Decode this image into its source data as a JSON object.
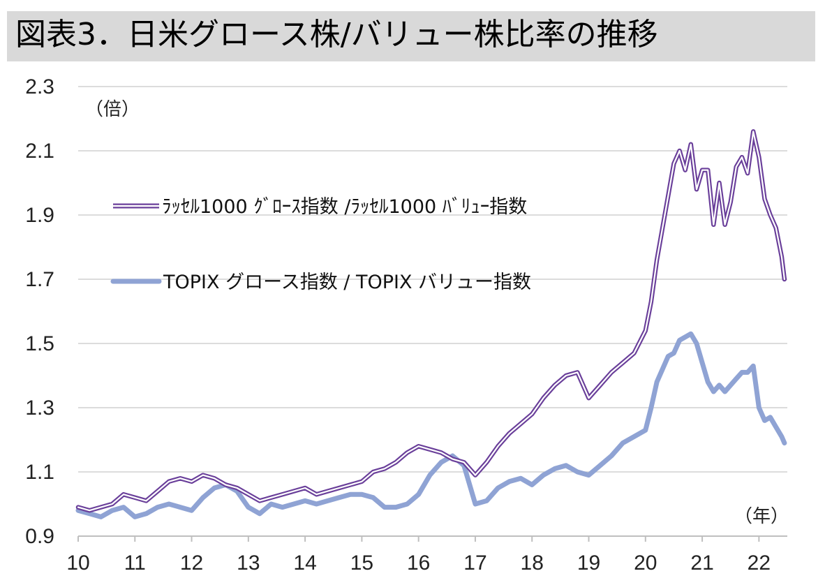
{
  "title": "図表3．日米グロース株/バリュー株比率の推移",
  "chart_data": {
    "type": "line",
    "title": "図表3．日米グロース株/バリュー株比率の推移",
    "ylabel": "（倍）",
    "xlabel": "（年）",
    "ylim": [
      0.9,
      2.3
    ],
    "xlim": [
      10,
      22.5
    ],
    "yticks": [
      0.9,
      1.1,
      1.3,
      1.5,
      1.7,
      1.9,
      2.1,
      2.3
    ],
    "ytick_labels": [
      "0.9",
      "1.1",
      "1.3",
      "1.5",
      "1.7",
      "1.9",
      "2.1",
      "2.3"
    ],
    "xticks": [
      10,
      11,
      12,
      13,
      14,
      15,
      16,
      17,
      18,
      19,
      20,
      21,
      22
    ],
    "xtick_labels": [
      "10",
      "11",
      "12",
      "13",
      "14",
      "15",
      "16",
      "17",
      "18",
      "19",
      "20",
      "21",
      "22"
    ],
    "grid": "horizontal",
    "legend_position": "upper-left",
    "series": [
      {
        "name": "ﾗｯｾﾙ1000 ｸﾞﾛｰｽ指数 /ﾗｯｾﾙ1000 ﾊﾞﾘｭｰ指数",
        "color": "#6a3f9a",
        "style": "double-line",
        "x": [
          10.0,
          10.2,
          10.4,
          10.6,
          10.8,
          11.0,
          11.2,
          11.4,
          11.6,
          11.8,
          12.0,
          12.2,
          12.4,
          12.6,
          12.8,
          13.0,
          13.2,
          13.4,
          13.6,
          13.8,
          14.0,
          14.2,
          14.4,
          14.6,
          14.8,
          15.0,
          15.2,
          15.4,
          15.6,
          15.8,
          16.0,
          16.2,
          16.4,
          16.6,
          16.8,
          17.0,
          17.2,
          17.4,
          17.6,
          17.8,
          18.0,
          18.2,
          18.4,
          18.6,
          18.8,
          19.0,
          19.2,
          19.4,
          19.6,
          19.8,
          20.0,
          20.1,
          20.2,
          20.3,
          20.4,
          20.5,
          20.6,
          20.7,
          20.8,
          20.9,
          21.0,
          21.1,
          21.2,
          21.3,
          21.4,
          21.5,
          21.6,
          21.7,
          21.8,
          21.9,
          22.0,
          22.1,
          22.2,
          22.3,
          22.4,
          22.45
        ],
        "values": [
          0.99,
          0.98,
          0.99,
          1.0,
          1.03,
          1.02,
          1.01,
          1.04,
          1.07,
          1.08,
          1.07,
          1.09,
          1.08,
          1.06,
          1.05,
          1.03,
          1.01,
          1.02,
          1.03,
          1.04,
          1.05,
          1.03,
          1.04,
          1.05,
          1.06,
          1.07,
          1.1,
          1.11,
          1.13,
          1.16,
          1.18,
          1.17,
          1.16,
          1.14,
          1.13,
          1.09,
          1.13,
          1.18,
          1.22,
          1.25,
          1.28,
          1.33,
          1.37,
          1.4,
          1.41,
          1.33,
          1.37,
          1.41,
          1.44,
          1.47,
          1.54,
          1.63,
          1.76,
          1.86,
          1.96,
          2.06,
          2.1,
          2.04,
          2.12,
          1.98,
          2.04,
          2.04,
          1.87,
          2.0,
          1.87,
          1.94,
          2.05,
          2.08,
          2.03,
          2.16,
          2.08,
          1.95,
          1.9,
          1.86,
          1.77,
          1.7
        ]
      },
      {
        "name": "TOPIX グロース指数 / TOPIX バリュー指数",
        "color": "#8fa3d4",
        "style": "thick-line",
        "x": [
          10.0,
          10.2,
          10.4,
          10.6,
          10.8,
          11.0,
          11.2,
          11.4,
          11.6,
          11.8,
          12.0,
          12.2,
          12.4,
          12.6,
          12.8,
          13.0,
          13.2,
          13.4,
          13.6,
          13.8,
          14.0,
          14.2,
          14.4,
          14.6,
          14.8,
          15.0,
          15.2,
          15.4,
          15.6,
          15.8,
          16.0,
          16.2,
          16.4,
          16.6,
          16.8,
          17.0,
          17.2,
          17.4,
          17.6,
          17.8,
          18.0,
          18.2,
          18.4,
          18.6,
          18.8,
          19.0,
          19.2,
          19.4,
          19.6,
          19.8,
          20.0,
          20.1,
          20.2,
          20.3,
          20.4,
          20.5,
          20.6,
          20.7,
          20.8,
          20.9,
          21.0,
          21.1,
          21.2,
          21.3,
          21.4,
          21.5,
          21.6,
          21.7,
          21.8,
          21.9,
          22.0,
          22.1,
          22.2,
          22.3,
          22.4,
          22.45
        ],
        "values": [
          0.98,
          0.97,
          0.96,
          0.98,
          0.99,
          0.96,
          0.97,
          0.99,
          1.0,
          0.99,
          0.98,
          1.02,
          1.05,
          1.06,
          1.04,
          0.99,
          0.97,
          1.0,
          0.99,
          1.0,
          1.01,
          1.0,
          1.01,
          1.02,
          1.03,
          1.03,
          1.02,
          0.99,
          0.99,
          1.0,
          1.03,
          1.09,
          1.13,
          1.15,
          1.12,
          1.0,
          1.01,
          1.05,
          1.07,
          1.08,
          1.06,
          1.09,
          1.11,
          1.12,
          1.1,
          1.09,
          1.12,
          1.15,
          1.19,
          1.21,
          1.23,
          1.3,
          1.38,
          1.42,
          1.46,
          1.47,
          1.51,
          1.52,
          1.53,
          1.5,
          1.44,
          1.38,
          1.35,
          1.37,
          1.35,
          1.37,
          1.39,
          1.41,
          1.41,
          1.43,
          1.3,
          1.26,
          1.27,
          1.24,
          1.21,
          1.19
        ]
      }
    ]
  }
}
